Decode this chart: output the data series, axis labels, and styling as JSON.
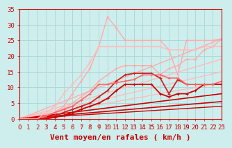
{
  "bg_color": "#ceeeed",
  "grid_color": "#aed8d8",
  "xlabel": "Vent moyen/en rafales ( km/h )",
  "xlim": [
    0,
    23
  ],
  "ylim": [
    0,
    35
  ],
  "xticks": [
    0,
    1,
    2,
    3,
    4,
    5,
    6,
    7,
    8,
    9,
    10,
    11,
    12,
    13,
    14,
    15,
    16,
    17,
    18,
    19,
    20,
    21,
    22,
    23
  ],
  "yticks": [
    0,
    5,
    10,
    15,
    20,
    25,
    30,
    35
  ],
  "lines": [
    {
      "comment": "straight diagonal line (light salmon, no marker)",
      "x": [
        0,
        23
      ],
      "y": [
        0,
        25.5
      ],
      "color": "#ffaaaa",
      "lw": 1.0,
      "marker": null
    },
    {
      "comment": "straight diagonal line slightly steeper (light pink)",
      "x": [
        0,
        23
      ],
      "y": [
        0,
        19.0
      ],
      "color": "#ffbbbb",
      "lw": 1.0,
      "marker": null
    },
    {
      "comment": "straight diagonal (light pink, medium)",
      "x": [
        0,
        23
      ],
      "y": [
        0,
        15.0
      ],
      "color": "#ffbbbb",
      "lw": 1.0,
      "marker": null
    },
    {
      "comment": "straight diagonal (light pink, lower)",
      "x": [
        0,
        23
      ],
      "y": [
        0,
        11.5
      ],
      "color": "#ffbbbb",
      "lw": 1.0,
      "marker": null
    },
    {
      "comment": "straight diagonal dark red lower",
      "x": [
        0,
        23
      ],
      "y": [
        0,
        8.0
      ],
      "color": "#cc0000",
      "lw": 1.2,
      "marker": null
    },
    {
      "comment": "straight diagonal dark red lowest",
      "x": [
        0,
        23
      ],
      "y": [
        0,
        5.5
      ],
      "color": "#cc0000",
      "lw": 1.2,
      "marker": null
    },
    {
      "comment": "straight diagonal dark red bottom",
      "x": [
        0,
        23
      ],
      "y": [
        0,
        4.0
      ],
      "color": "#cc0000",
      "lw": 1.0,
      "marker": null
    },
    {
      "comment": "light pink zigzag with peak at x=10, markers",
      "x": [
        0,
        1,
        2,
        3,
        4,
        5,
        6,
        7,
        8,
        9,
        10,
        11,
        12,
        13,
        14,
        15,
        16,
        17,
        18,
        19,
        20,
        21,
        22,
        23
      ],
      "y": [
        0,
        0,
        0,
        1,
        2,
        4,
        8,
        12,
        16,
        23,
        32.5,
        29,
        25,
        25,
        25,
        25,
        25,
        22,
        14,
        25,
        25,
        25,
        25,
        25.5
      ],
      "color": "#ffaaaa",
      "lw": 1.0,
      "marker": "+",
      "ms": 3
    },
    {
      "comment": "medium pink line with markers - rises then plateau with dip at 16",
      "x": [
        0,
        1,
        2,
        3,
        4,
        5,
        6,
        7,
        8,
        9,
        10,
        11,
        12,
        13,
        14,
        15,
        16,
        17,
        18,
        19,
        20,
        21,
        22,
        23
      ],
      "y": [
        0,
        0,
        0,
        1,
        2,
        3,
        5,
        7,
        9,
        12,
        14,
        16,
        17,
        17,
        17,
        17,
        14,
        16,
        17,
        19,
        19,
        22,
        23,
        25.5
      ],
      "color": "#ffaaaa",
      "lw": 1.0,
      "marker": "+",
      "ms": 3
    },
    {
      "comment": "dark red with markers - rises to ~14 with zigzag",
      "x": [
        0,
        1,
        2,
        3,
        4,
        5,
        6,
        7,
        8,
        9,
        10,
        11,
        12,
        13,
        14,
        15,
        16,
        17,
        18,
        19,
        20,
        21,
        22,
        23
      ],
      "y": [
        0,
        0,
        0,
        0,
        1,
        2,
        3,
        4,
        5,
        7,
        9,
        12,
        14,
        14.5,
        14.5,
        14.5,
        13,
        8,
        12.5,
        11,
        11,
        11,
        11,
        11
      ],
      "color": "#cc2222",
      "lw": 1.3,
      "marker": "+",
      "ms": 3
    },
    {
      "comment": "dark red with markers - moderate rise",
      "x": [
        0,
        1,
        2,
        3,
        4,
        5,
        6,
        7,
        8,
        9,
        10,
        11,
        12,
        13,
        14,
        15,
        16,
        17,
        18,
        19,
        20,
        21,
        22,
        23
      ],
      "y": [
        0,
        0,
        0,
        0,
        0.5,
        1,
        2,
        3,
        4,
        5,
        6.5,
        9,
        11,
        11,
        11,
        11,
        8,
        7,
        8,
        8,
        9,
        11,
        11,
        11
      ],
      "color": "#cc0000",
      "lw": 1.3,
      "marker": "+",
      "ms": 3
    },
    {
      "comment": "pink with + markers - medium line with bump then dip",
      "x": [
        0,
        1,
        2,
        3,
        4,
        5,
        6,
        7,
        8,
        9,
        10,
        11,
        12,
        13,
        14,
        15,
        16,
        17,
        18,
        19,
        20,
        21,
        22,
        23
      ],
      "y": [
        0,
        0,
        0,
        1,
        2,
        3,
        4,
        6,
        8,
        11,
        11,
        11.5,
        12,
        12.5,
        14,
        14,
        14,
        13,
        13,
        11,
        11,
        11,
        11,
        12
      ],
      "color": "#ff6666",
      "lw": 1.2,
      "marker": "+",
      "ms": 3
    },
    {
      "comment": "light salmon with + markers plateau at ~23",
      "x": [
        0,
        1,
        2,
        3,
        4,
        5,
        6,
        7,
        8,
        9,
        10,
        11,
        12,
        13,
        14,
        15,
        16,
        17,
        18,
        19,
        20,
        21,
        22,
        23
      ],
      "y": [
        0,
        0,
        0,
        2,
        4,
        8,
        11,
        14,
        18,
        23,
        23,
        23,
        23,
        23,
        23,
        23,
        23,
        22,
        22,
        22,
        22,
        23,
        23,
        23
      ],
      "color": "#ffbbbb",
      "lw": 1.0,
      "marker": "+",
      "ms": 3
    }
  ],
  "xlabel_color": "#cc0000",
  "tick_color": "#cc0000",
  "xlabel_fontsize": 8,
  "tick_fontsize": 6.5
}
